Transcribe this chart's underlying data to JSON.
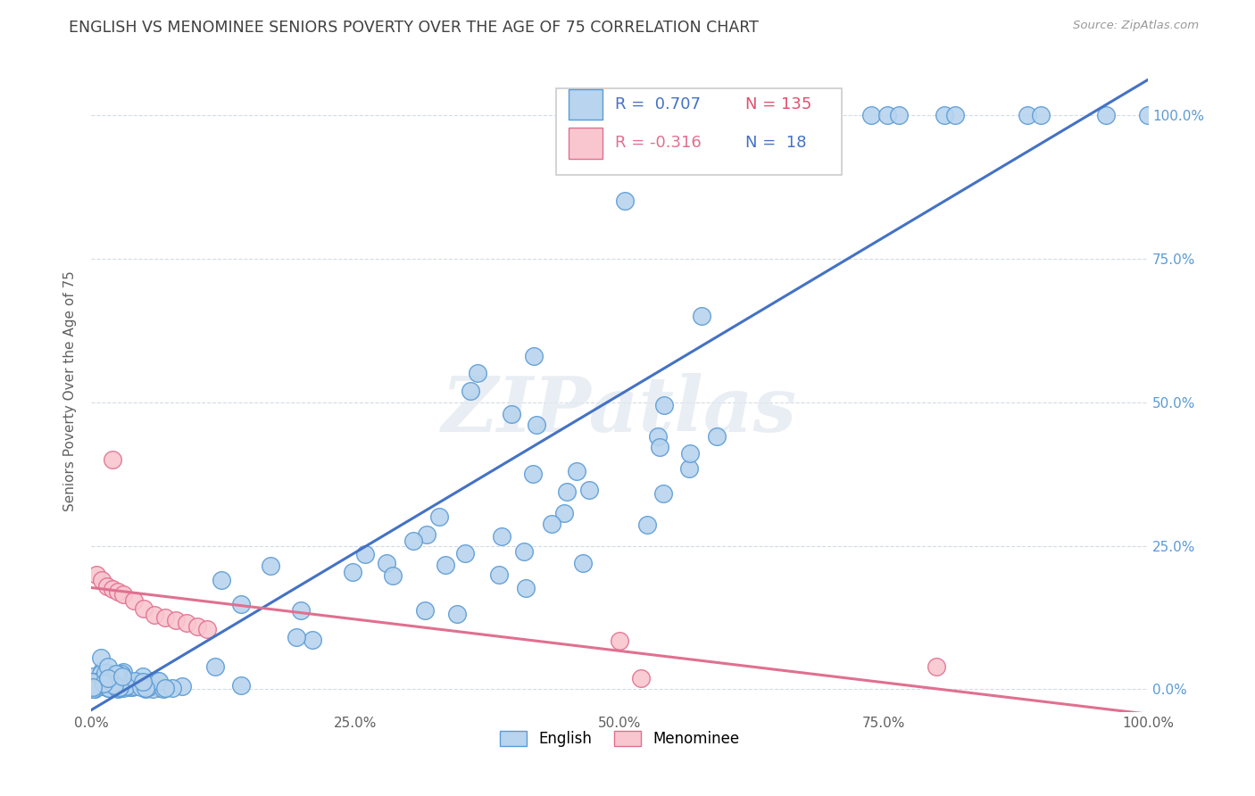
{
  "title": "ENGLISH VS MENOMINEE SENIORS POVERTY OVER THE AGE OF 75 CORRELATION CHART",
  "source": "Source: ZipAtlas.com",
  "ylabel": "Seniors Poverty Over the Age of 75",
  "r_english": 0.707,
  "n_english": 135,
  "r_menominee": -0.316,
  "n_menominee": 18,
  "english_fill": "#b8d4ee",
  "english_edge": "#5b9bd5",
  "menominee_fill": "#f9c6cf",
  "menominee_edge": "#e07090",
  "english_line_color": "#4472c4",
  "menominee_line_color": "#e07090",
  "background_color": "#ffffff",
  "grid_color": "#d0d8e4",
  "watermark": "ZIPatlas",
  "title_color": "#404040",
  "axis_label_color": "#606060",
  "right_tick_color": "#5b9bd5",
  "legend_box_edge": "#cccccc"
}
